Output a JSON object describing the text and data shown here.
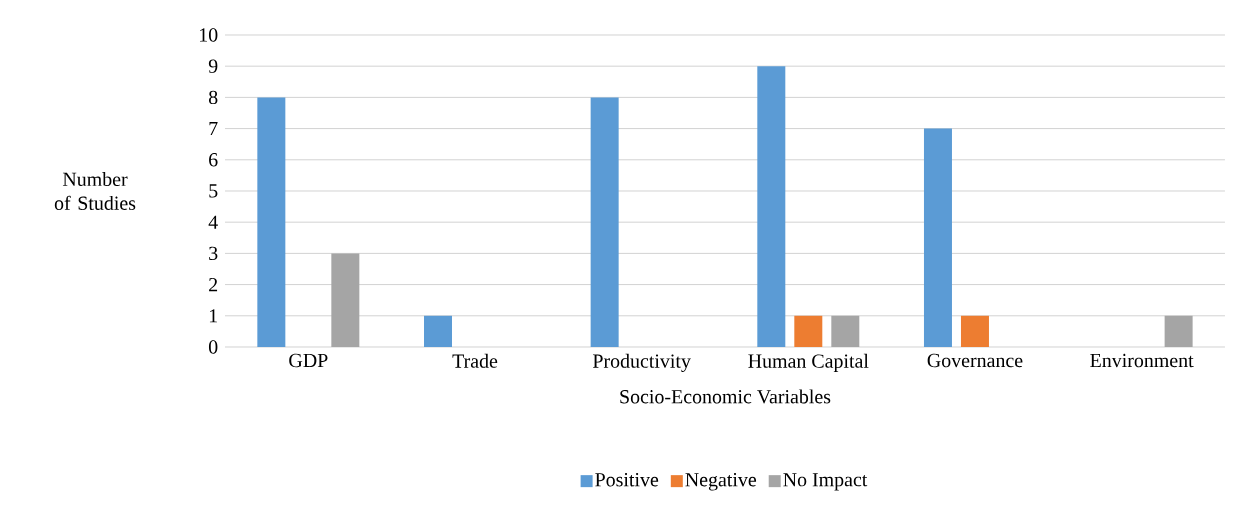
{
  "chart_data": {
    "type": "bar",
    "xlabel": "Socio-Economic Variables",
    "ylabel": "Number of Studies",
    "categories": [
      "GDP",
      "Trade",
      "Productivity",
      "Human Capital",
      "Governance",
      "Environment"
    ],
    "series": [
      {
        "name": "Positive",
        "color": "#5b9bd5",
        "values": [
          8,
          1,
          8,
          9,
          7,
          0
        ]
      },
      {
        "name": "Negative",
        "color": "#ed7d31",
        "values": [
          0,
          0,
          0,
          1,
          1,
          0
        ]
      },
      {
        "name": "No Impact",
        "color": "#a5a5a5",
        "values": [
          3,
          0,
          0,
          1,
          0,
          1
        ]
      }
    ],
    "ylim": [
      0,
      10
    ],
    "yticks": [
      0,
      1,
      2,
      3,
      4,
      5,
      6,
      7,
      8,
      9,
      10
    ],
    "grid": "y",
    "legend": "bottom"
  }
}
